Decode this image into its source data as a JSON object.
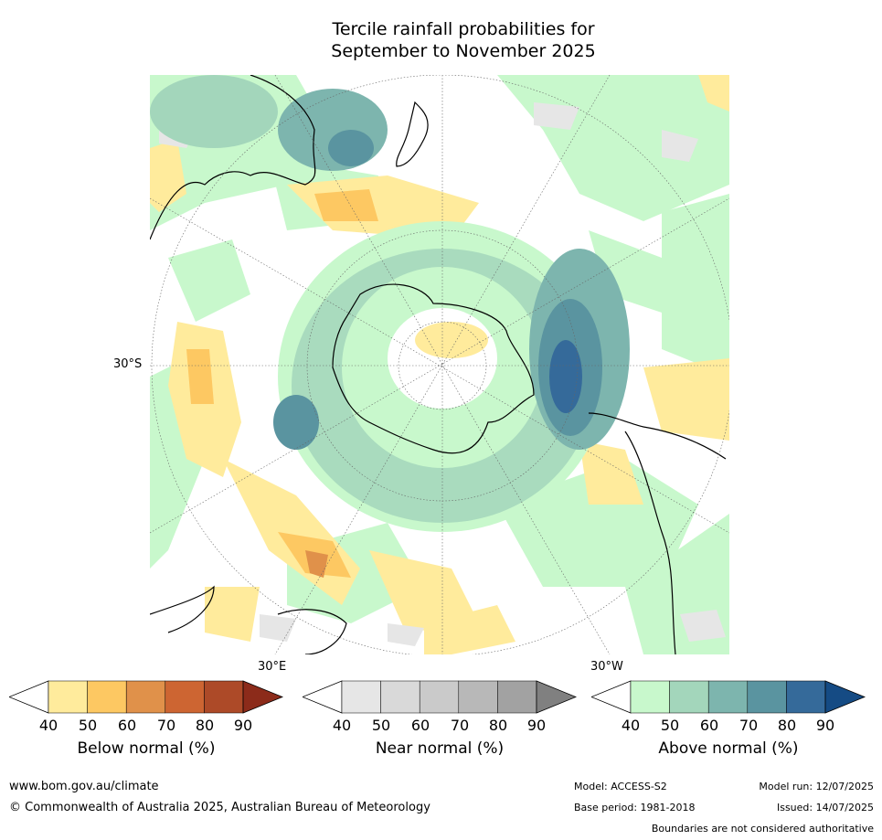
{
  "title_line1": "Tercile rainfall probabilities for",
  "title_line2": "September to November 2025",
  "map": {
    "projection": "south-polar stereographic",
    "lat_label": "30°S",
    "lon_labels": {
      "east": "30°E",
      "west": "30°W"
    }
  },
  "colorbars": [
    {
      "caption": "Below normal (%)",
      "ticks": [
        "40",
        "50",
        "60",
        "70",
        "80",
        "90"
      ],
      "colors": [
        "#ffffff",
        "#ffeb9c",
        "#fdc862",
        "#e0914a",
        "#cd6532",
        "#ad4a28",
        "#8c2b1a"
      ]
    },
    {
      "caption": "Near normal (%)",
      "ticks": [
        "40",
        "50",
        "60",
        "70",
        "80",
        "90"
      ],
      "colors": [
        "#ffffff",
        "#e6e6e6",
        "#d9d9d9",
        "#cacaca",
        "#b8b8b8",
        "#a2a2a2",
        "#808080"
      ]
    },
    {
      "caption": "Above normal (%)",
      "ticks": [
        "40",
        "50",
        "60",
        "70",
        "80",
        "90"
      ],
      "colors": [
        "#ffffff",
        "#c8f8cc",
        "#a3d6bb",
        "#7db5ae",
        "#5a94a0",
        "#356a9a",
        "#154b84"
      ]
    }
  ],
  "footer": {
    "url": "www.bom.gov.au/climate",
    "copyright": "© Commonwealth of Australia 2025, Australian Bureau of Meteorology",
    "model": "Model: ACCESS-S2",
    "model_run": "Model run: 12/07/2025",
    "base_period": "Base period: 1981-2018",
    "issued": "Issued: 14/07/2025",
    "disclaimer": "Boundaries are not considered authoritative"
  }
}
